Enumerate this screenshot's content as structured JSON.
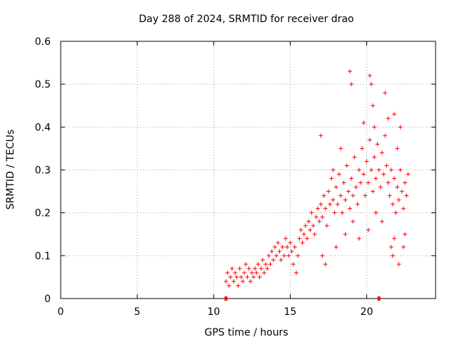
{
  "chart_data": {
    "type": "scatter",
    "title": "Day 288 of 2024, SRMTID for receiver drao",
    "xlabel": "GPS time / hours",
    "ylabel": "SRMTID / TECUs",
    "xlim": [
      0,
      24.5
    ],
    "ylim": [
      0,
      0.6
    ],
    "xticks": [
      0,
      5,
      10,
      15,
      20
    ],
    "yticks": [
      0,
      0.1,
      0.2,
      0.3,
      0.4,
      0.5,
      0.6
    ],
    "xtick_labels": [
      "0",
      "5",
      "10",
      "15",
      "20"
    ],
    "ytick_labels": [
      "0",
      "0.1",
      "0.2",
      "0.3",
      "0.4",
      "0.5",
      "0.6"
    ],
    "grid": true,
    "marker": "+",
    "color": "#ff0000",
    "axis_markers_x": [
      10.8,
      20.8
    ],
    "series": [
      {
        "name": "SRMTID",
        "points": [
          [
            10.8,
            0.04
          ],
          [
            10.9,
            0.06
          ],
          [
            11.0,
            0.03
          ],
          [
            11.1,
            0.05
          ],
          [
            11.2,
            0.07
          ],
          [
            11.3,
            0.04
          ],
          [
            11.4,
            0.06
          ],
          [
            11.5,
            0.05
          ],
          [
            11.6,
            0.03
          ],
          [
            11.7,
            0.07
          ],
          [
            11.8,
            0.05
          ],
          [
            11.9,
            0.04
          ],
          [
            12.0,
            0.06
          ],
          [
            12.1,
            0.08
          ],
          [
            12.2,
            0.05
          ],
          [
            12.3,
            0.07
          ],
          [
            12.4,
            0.04
          ],
          [
            12.5,
            0.06
          ],
          [
            12.6,
            0.05
          ],
          [
            12.7,
            0.07
          ],
          [
            12.8,
            0.06
          ],
          [
            12.9,
            0.08
          ],
          [
            13.0,
            0.05
          ],
          [
            13.1,
            0.07
          ],
          [
            13.2,
            0.09
          ],
          [
            13.3,
            0.06
          ],
          [
            13.4,
            0.08
          ],
          [
            13.5,
            0.07
          ],
          [
            13.6,
            0.1
          ],
          [
            13.7,
            0.08
          ],
          [
            13.8,
            0.11
          ],
          [
            13.9,
            0.09
          ],
          [
            14.0,
            0.12
          ],
          [
            14.1,
            0.1
          ],
          [
            14.2,
            0.13
          ],
          [
            14.3,
            0.11
          ],
          [
            14.4,
            0.09
          ],
          [
            14.5,
            0.12
          ],
          [
            14.6,
            0.1
          ],
          [
            14.7,
            0.14
          ],
          [
            14.8,
            0.12
          ],
          [
            14.9,
            0.1
          ],
          [
            15.0,
            0.13
          ],
          [
            15.1,
            0.11
          ],
          [
            15.2,
            0.08
          ],
          [
            15.3,
            0.12
          ],
          [
            15.4,
            0.06
          ],
          [
            15.5,
            0.1
          ],
          [
            15.6,
            0.14
          ],
          [
            15.7,
            0.16
          ],
          [
            15.8,
            0.13
          ],
          [
            15.9,
            0.15
          ],
          [
            16.0,
            0.17
          ],
          [
            16.1,
            0.14
          ],
          [
            16.2,
            0.18
          ],
          [
            16.3,
            0.16
          ],
          [
            16.4,
            0.2
          ],
          [
            16.5,
            0.17
          ],
          [
            16.6,
            0.15
          ],
          [
            16.7,
            0.19
          ],
          [
            16.8,
            0.21
          ],
          [
            16.9,
            0.18
          ],
          [
            17.0,
            0.22
          ],
          [
            17.1,
            0.19
          ],
          [
            17.2,
            0.24
          ],
          [
            17.3,
            0.21
          ],
          [
            17.4,
            0.17
          ],
          [
            17.5,
            0.25
          ],
          [
            17.6,
            0.22
          ],
          [
            17.7,
            0.28
          ],
          [
            17.8,
            0.23
          ],
          [
            17.9,
            0.2
          ],
          [
            18.0,
            0.26
          ],
          [
            18.1,
            0.22
          ],
          [
            18.2,
            0.29
          ],
          [
            18.3,
            0.24
          ],
          [
            18.4,
            0.2
          ],
          [
            18.5,
            0.27
          ],
          [
            18.6,
            0.23
          ],
          [
            18.7,
            0.31
          ],
          [
            18.8,
            0.25
          ],
          [
            18.9,
            0.21
          ],
          [
            19.0,
            0.28
          ],
          [
            19.1,
            0.24
          ],
          [
            19.2,
            0.33
          ],
          [
            19.3,
            0.26
          ],
          [
            19.4,
            0.22
          ],
          [
            19.5,
            0.3
          ],
          [
            19.6,
            0.27
          ],
          [
            19.7,
            0.35
          ],
          [
            19.8,
            0.29
          ],
          [
            19.9,
            0.24
          ],
          [
            20.0,
            0.32
          ],
          [
            20.1,
            0.27
          ],
          [
            20.2,
            0.37
          ],
          [
            20.3,
            0.3
          ],
          [
            20.4,
            0.25
          ],
          [
            20.5,
            0.33
          ],
          [
            20.6,
            0.28
          ],
          [
            20.7,
            0.36
          ],
          [
            20.8,
            0.3
          ],
          [
            20.9,
            0.26
          ],
          [
            21.0,
            0.34
          ],
          [
            21.1,
            0.29
          ],
          [
            21.2,
            0.38
          ],
          [
            21.3,
            0.31
          ],
          [
            21.4,
            0.27
          ],
          [
            21.5,
            0.24
          ],
          [
            21.6,
            0.3
          ],
          [
            21.7,
            0.22
          ],
          [
            21.8,
            0.28
          ],
          [
            21.9,
            0.2
          ],
          [
            22.0,
            0.26
          ],
          [
            22.1,
            0.23
          ],
          [
            22.2,
            0.3
          ],
          [
            22.3,
            0.25
          ],
          [
            22.4,
            0.21
          ],
          [
            22.5,
            0.27
          ],
          [
            22.6,
            0.24
          ],
          [
            22.7,
            0.29
          ],
          [
            17.0,
            0.38
          ],
          [
            17.8,
            0.3
          ],
          [
            18.3,
            0.35
          ],
          [
            18.9,
            0.53
          ],
          [
            19.0,
            0.5
          ],
          [
            19.8,
            0.41
          ],
          [
            20.2,
            0.52
          ],
          [
            20.3,
            0.5
          ],
          [
            20.4,
            0.45
          ],
          [
            20.5,
            0.4
          ],
          [
            21.2,
            0.48
          ],
          [
            21.4,
            0.42
          ],
          [
            21.8,
            0.43
          ],
          [
            22.0,
            0.35
          ],
          [
            22.2,
            0.4
          ],
          [
            21.6,
            0.12
          ],
          [
            21.7,
            0.1
          ],
          [
            21.8,
            0.14
          ],
          [
            22.4,
            0.12
          ],
          [
            22.5,
            0.15
          ],
          [
            17.1,
            0.1
          ],
          [
            17.3,
            0.08
          ],
          [
            18.0,
            0.12
          ],
          [
            18.6,
            0.15
          ],
          [
            19.1,
            0.18
          ],
          [
            19.5,
            0.14
          ],
          [
            20.1,
            0.16
          ],
          [
            20.6,
            0.2
          ],
          [
            21.0,
            0.18
          ],
          [
            22.1,
            0.08
          ]
        ]
      }
    ]
  }
}
